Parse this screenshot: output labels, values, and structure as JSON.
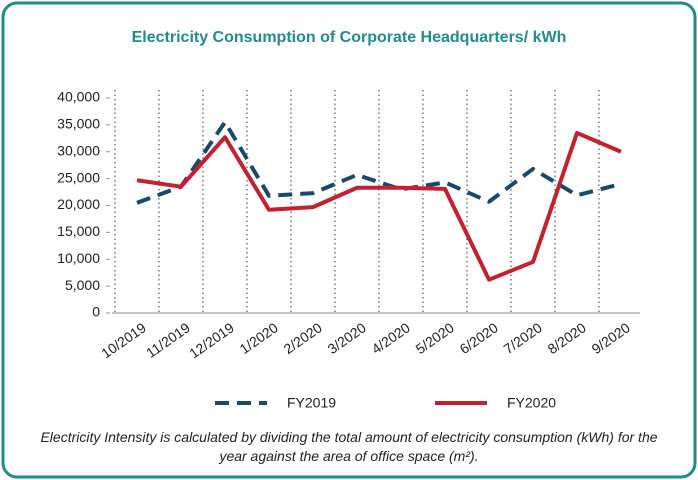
{
  "chart_data": {
    "type": "line",
    "title": "Electricity Consumption of Corporate Headquarters/ kWh",
    "categories": [
      "10/2019",
      "11/2019",
      "12/2019",
      "1/2020",
      "2/2020",
      "3/2020",
      "4/2020",
      "5/2020",
      "6/2020",
      "7/2020",
      "8/2020",
      "9/2020"
    ],
    "series": [
      {
        "name": "FY2019",
        "color": "#17496b",
        "dashed": true,
        "values": [
          20500,
          23500,
          35500,
          21800,
          22300,
          25700,
          23000,
          24300,
          20700,
          26800,
          21900,
          24000
        ]
      },
      {
        "name": "FY2020",
        "color": "#c5202f",
        "dashed": false,
        "values": [
          24700,
          23500,
          32700,
          19200,
          19700,
          23300,
          23300,
          23100,
          6200,
          9500,
          33500,
          30000
        ]
      }
    ],
    "ylim": [
      0,
      40000
    ],
    "yticks": [
      0,
      {
        "value": 5000,
        "label": "5,000"
      },
      {
        "value": 10000,
        "label": "10,000"
      },
      {
        "value": 15000,
        "label": "15,000"
      },
      {
        "value": 20000,
        "label": "20,000"
      },
      {
        "value": 25000,
        "label": "25,000"
      },
      {
        "value": 30000,
        "label": "30,000"
      },
      {
        "value": 35000,
        "label": "35,000"
      },
      {
        "value": 40000,
        "label": "40,000"
      }
    ],
    "grid": false,
    "legend": "bottom",
    "note": "Electricity Intensity is calculated by dividing the total amount of electricity consumption (kWh) for the year against the area of office space (m²)."
  }
}
